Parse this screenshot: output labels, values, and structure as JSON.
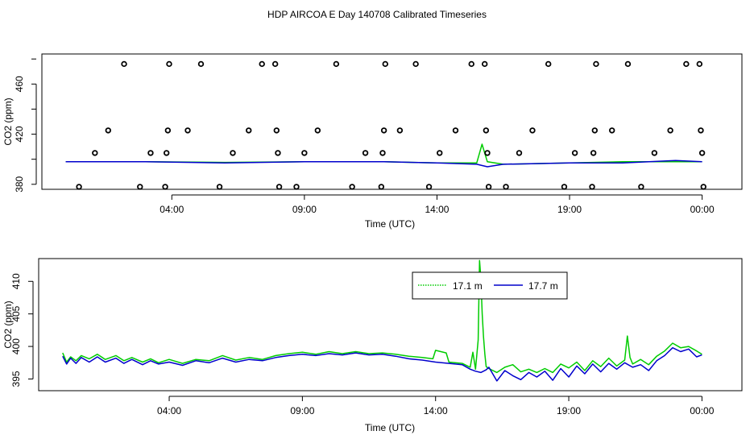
{
  "title": "HDP AIRCOA E  Day 140708  Calibrated Timeseries",
  "colors": {
    "series_17_1": "#00cc00",
    "series_17_7": "#0000cc",
    "points": "#000000",
    "axes": "#000000"
  },
  "chart_data": [
    {
      "type": "scatter",
      "xlabel": "Time (UTC)",
      "ylabel": "CO2 (ppm)",
      "x_ticks": [
        "04:00",
        "09:00",
        "14:00",
        "19:00",
        "00:00"
      ],
      "x_tick_hours": [
        4,
        9,
        14,
        19,
        24
      ],
      "y_ticks": [
        380,
        420,
        460
      ],
      "xlim_hours": [
        -0.9,
        25.5
      ],
      "ylim": [
        376,
        484
      ],
      "grid": false,
      "reference_points": [
        {
          "t": 0.5,
          "co2": 378
        },
        {
          "t": 1.1,
          "co2": 405
        },
        {
          "t": 1.6,
          "co2": 423
        },
        {
          "t": 2.2,
          "co2": 476
        },
        {
          "t": 2.8,
          "co2": 378
        },
        {
          "t": 3.2,
          "co2": 405
        },
        {
          "t": 3.75,
          "co2": 378
        },
        {
          "t": 3.8,
          "co2": 405
        },
        {
          "t": 3.85,
          "co2": 423
        },
        {
          "t": 3.9,
          "co2": 476
        },
        {
          "t": 4.6,
          "co2": 423
        },
        {
          "t": 5.1,
          "co2": 476
        },
        {
          "t": 5.8,
          "co2": 378
        },
        {
          "t": 6.3,
          "co2": 405
        },
        {
          "t": 6.9,
          "co2": 423
        },
        {
          "t": 7.4,
          "co2": 476
        },
        {
          "t": 7.9,
          "co2": 476
        },
        {
          "t": 7.95,
          "co2": 423
        },
        {
          "t": 8.0,
          "co2": 405
        },
        {
          "t": 8.05,
          "co2": 378
        },
        {
          "t": 8.7,
          "co2": 378
        },
        {
          "t": 9.0,
          "co2": 405
        },
        {
          "t": 9.5,
          "co2": 423
        },
        {
          "t": 10.2,
          "co2": 476
        },
        {
          "t": 10.8,
          "co2": 378
        },
        {
          "t": 11.3,
          "co2": 405
        },
        {
          "t": 11.9,
          "co2": 378
        },
        {
          "t": 11.95,
          "co2": 405
        },
        {
          "t": 12.0,
          "co2": 423
        },
        {
          "t": 12.05,
          "co2": 476
        },
        {
          "t": 12.6,
          "co2": 423
        },
        {
          "t": 13.2,
          "co2": 476
        },
        {
          "t": 13.7,
          "co2": 378
        },
        {
          "t": 14.1,
          "co2": 405
        },
        {
          "t": 14.7,
          "co2": 423
        },
        {
          "t": 15.3,
          "co2": 476
        },
        {
          "t": 15.8,
          "co2": 476
        },
        {
          "t": 15.85,
          "co2": 423
        },
        {
          "t": 15.9,
          "co2": 405
        },
        {
          "t": 15.95,
          "co2": 378
        },
        {
          "t": 16.6,
          "co2": 378
        },
        {
          "t": 17.1,
          "co2": 405
        },
        {
          "t": 17.6,
          "co2": 423
        },
        {
          "t": 18.2,
          "co2": 476
        },
        {
          "t": 18.8,
          "co2": 378
        },
        {
          "t": 19.2,
          "co2": 405
        },
        {
          "t": 19.85,
          "co2": 378
        },
        {
          "t": 19.9,
          "co2": 405
        },
        {
          "t": 19.95,
          "co2": 423
        },
        {
          "t": 20.0,
          "co2": 476
        },
        {
          "t": 20.6,
          "co2": 423
        },
        {
          "t": 21.2,
          "co2": 476
        },
        {
          "t": 21.7,
          "co2": 378
        },
        {
          "t": 22.2,
          "co2": 405
        },
        {
          "t": 22.8,
          "co2": 423
        },
        {
          "t": 23.4,
          "co2": 476
        },
        {
          "t": 23.9,
          "co2": 476
        },
        {
          "t": 23.95,
          "co2": 423
        },
        {
          "t": 24.0,
          "co2": 405
        },
        {
          "t": 24.05,
          "co2": 378
        }
      ],
      "series": [
        {
          "name": "17.1 m",
          "t": [
            0,
            3,
            6,
            9,
            12,
            14,
            15.5,
            15.7,
            15.9,
            16.5,
            19,
            21,
            23,
            24
          ],
          "co2": [
            398,
            398,
            397.5,
            398,
            398,
            397,
            397,
            412,
            398,
            396,
            397,
            398,
            398,
            398
          ]
        },
        {
          "name": "17.7 m",
          "t": [
            0,
            3,
            6,
            9,
            12,
            14,
            15.5,
            15.9,
            16.5,
            19,
            21,
            23,
            24
          ],
          "co2": [
            398,
            398,
            397,
            398,
            398,
            397,
            396,
            394,
            396,
            397,
            397,
            399,
            398
          ]
        }
      ]
    },
    {
      "type": "line",
      "xlabel": "Time (UTC)",
      "ylabel": "CO2 (ppm)",
      "x_ticks": [
        "04:00",
        "09:00",
        "14:00",
        "19:00",
        "00:00"
      ],
      "x_tick_hours": [
        4,
        9,
        14,
        19,
        24
      ],
      "y_ticks": [
        395,
        400,
        405,
        410
      ],
      "xlim_hours": [
        -0.9,
        25.5
      ],
      "ylim": [
        393.2,
        413.5
      ],
      "grid": false,
      "legend_position": "top-right",
      "series": [
        {
          "name": "17.1 m",
          "t": [
            0.0,
            0.15,
            0.3,
            0.5,
            0.7,
            1.0,
            1.3,
            1.6,
            2.0,
            2.3,
            2.6,
            3.0,
            3.3,
            3.6,
            4.0,
            4.5,
            5.0,
            5.5,
            6.0,
            6.5,
            7.0,
            7.5,
            8.0,
            8.5,
            9.0,
            9.5,
            10.0,
            10.5,
            11.0,
            11.5,
            12.0,
            12.5,
            13.0,
            13.5,
            13.9,
            14.0,
            14.4,
            14.5,
            15.0,
            15.3,
            15.4,
            15.5,
            15.6,
            15.65,
            15.7,
            15.75,
            15.8,
            15.85,
            15.9,
            16.0,
            16.3,
            16.6,
            16.9,
            17.2,
            17.5,
            17.8,
            18.1,
            18.4,
            18.7,
            19.0,
            19.3,
            19.6,
            19.9,
            20.2,
            20.5,
            20.8,
            21.1,
            21.2,
            21.3,
            21.4,
            21.7,
            22.0,
            22.3,
            22.6,
            22.9,
            23.2,
            23.5,
            23.8,
            24.0
          ],
          "co2": [
            399.0,
            397.6,
            398.4,
            397.8,
            398.6,
            398.1,
            398.8,
            398.0,
            398.6,
            397.8,
            398.3,
            397.6,
            398.1,
            397.5,
            398.0,
            397.4,
            398.0,
            397.8,
            398.6,
            397.9,
            398.3,
            398.0,
            398.6,
            398.9,
            399.1,
            398.8,
            399.2,
            398.9,
            399.2,
            398.9,
            399.0,
            398.8,
            398.5,
            398.3,
            398.1,
            399.4,
            399.0,
            397.6,
            397.4,
            396.8,
            399.1,
            396.5,
            401.0,
            413.2,
            410.5,
            405.0,
            401.5,
            398.8,
            396.9,
            396.6,
            396.0,
            396.8,
            397.2,
            396.1,
            396.5,
            396.0,
            396.6,
            396.0,
            397.3,
            396.7,
            397.6,
            396.3,
            397.8,
            396.9,
            398.2,
            397.0,
            397.9,
            401.6,
            398.3,
            397.3,
            398.0,
            397.2,
            398.5,
            399.3,
            400.5,
            399.8,
            400.0,
            399.3,
            398.8
          ]
        },
        {
          "name": "17.7 m",
          "t": [
            0.0,
            0.15,
            0.3,
            0.5,
            0.7,
            1.0,
            1.3,
            1.6,
            2.0,
            2.3,
            2.6,
            3.0,
            3.3,
            3.6,
            4.0,
            4.5,
            5.0,
            5.5,
            6.0,
            6.5,
            7.0,
            7.5,
            8.0,
            8.5,
            9.0,
            9.5,
            10.0,
            10.5,
            11.0,
            11.5,
            12.0,
            12.5,
            13.0,
            13.5,
            14.0,
            14.5,
            15.0,
            15.3,
            15.5,
            15.7,
            15.9,
            16.0,
            16.3,
            16.6,
            16.9,
            17.2,
            17.5,
            17.8,
            18.1,
            18.4,
            18.7,
            19.0,
            19.3,
            19.6,
            19.9,
            20.2,
            20.5,
            20.8,
            21.1,
            21.4,
            21.7,
            22.0,
            22.3,
            22.6,
            22.9,
            23.2,
            23.5,
            23.8,
            24.0
          ],
          "co2": [
            398.5,
            397.3,
            398.2,
            397.4,
            398.3,
            397.6,
            398.4,
            397.6,
            398.2,
            397.4,
            398.0,
            397.2,
            397.8,
            397.3,
            397.6,
            397.1,
            397.8,
            397.5,
            398.2,
            397.6,
            398.0,
            397.8,
            398.3,
            398.6,
            398.8,
            398.6,
            398.9,
            398.7,
            399.0,
            398.7,
            398.8,
            398.5,
            398.1,
            397.9,
            397.6,
            397.4,
            397.2,
            396.5,
            396.2,
            396.0,
            396.4,
            396.8,
            394.7,
            396.3,
            395.5,
            394.9,
            396.0,
            395.3,
            396.2,
            394.8,
            396.6,
            395.3,
            397.0,
            395.8,
            397.3,
            396.1,
            397.4,
            396.5,
            397.5,
            396.8,
            397.2,
            396.3,
            397.8,
            398.6,
            399.8,
            399.2,
            399.6,
            398.4,
            398.7
          ]
        }
      ]
    }
  ]
}
